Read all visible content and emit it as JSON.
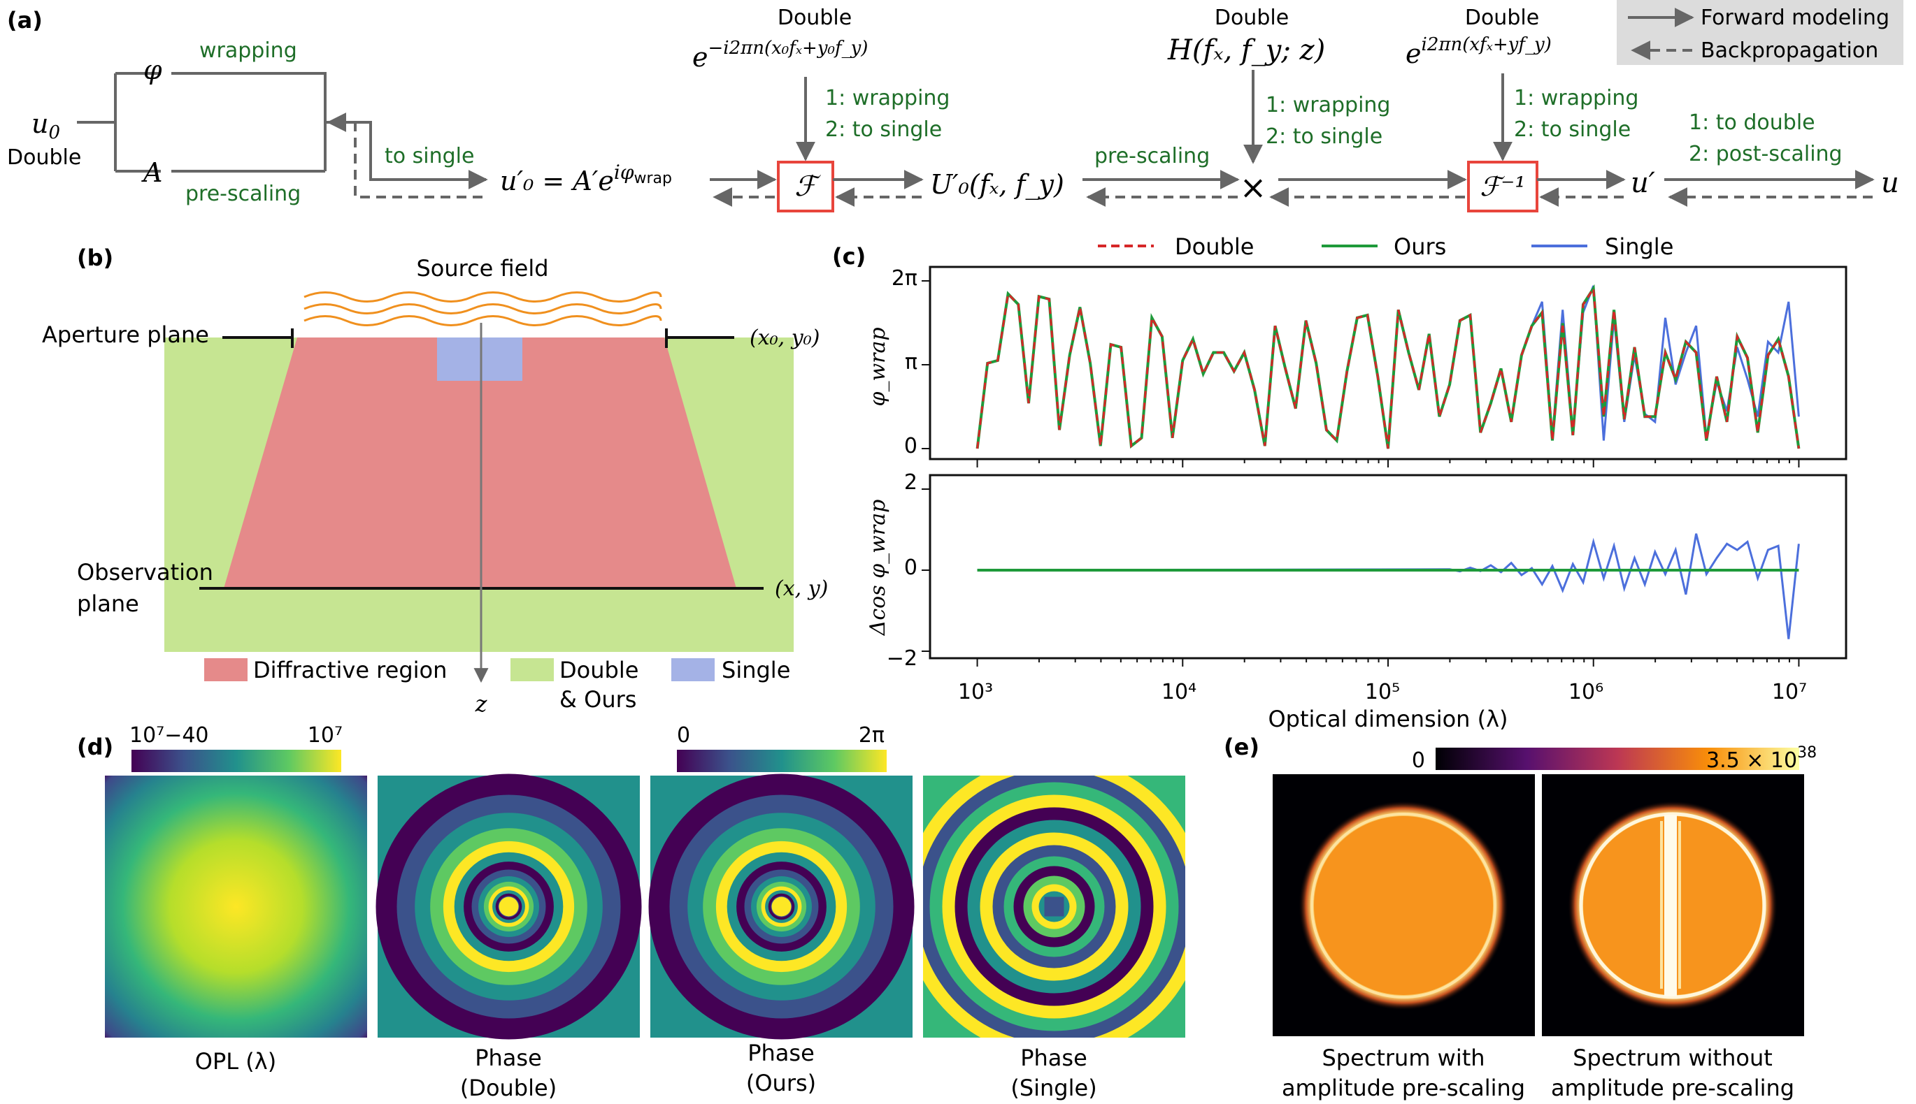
{
  "colors": {
    "arrow": "#666666",
    "green_text": "#1e6e28",
    "red_box": "#e8453c",
    "diffractive": "#e58a8a",
    "double_ours": "#c6e592",
    "single_region": "#a4b2e6",
    "source_wave": "#f0901e",
    "double_line": "#d62728",
    "ours_line": "#1e9a3a",
    "single_line": "#4c6fdc",
    "legend_bg": "#dcdcdc"
  },
  "panel_a": {
    "label": "(a)",
    "u0": "u",
    "u0_sub": "0",
    "u0_type": "Double",
    "phi": "φ",
    "amp": "A",
    "wrapping": "wrapping",
    "pre_scaling": "pre-scaling",
    "to_single": "to single",
    "u0p_eq": "u′₀ = A′e",
    "u0p_exp": "iφ",
    "u0p_exp_sub": "wrap",
    "fft_symbol": "ℱ",
    "ifft_symbol": "ℱ⁻¹",
    "double1": "Double",
    "kernel1": "e",
    "kernel1_exp": "−i2πn(x₀fₓ+y₀f_y)",
    "step1_a": "1: wrapping",
    "step1_b": "2: to single",
    "U0p": "U′₀(fₓ, f_y)",
    "pre_scaling2": "pre-scaling",
    "double2": "Double",
    "H": "H(fₓ, f_y; z)",
    "step2_a": "1: wrapping",
    "step2_b": "2: to single",
    "times": "×",
    "double3": "Double",
    "kernel3": "e",
    "kernel3_exp": "i2πn(xfₓ+yf_y)",
    "step3_a": "1: wrapping",
    "step3_b": "2: to single",
    "up": "u′",
    "u": "u",
    "step4_a": "1: to double",
    "step4_b": "2: post-scaling",
    "legend_forward": "Forward modeling",
    "legend_back": "Backpropagation"
  },
  "panel_b": {
    "label": "(b)",
    "source_field": "Source field",
    "aperture_plane": "Aperture plane",
    "aperture_coord": "(x₀, y₀)",
    "observation_plane_1": "Observation",
    "observation_plane_2": "plane",
    "observation_coord": "(x, y)",
    "z_label": "z",
    "legend_diffractive": "Diffractive region",
    "legend_double_1": "Double",
    "legend_double_2": "& Ours",
    "legend_single": "Single"
  },
  "chart_data": {
    "type": "line",
    "label": "(c)",
    "legend": [
      "Double",
      "Ours",
      "Single"
    ],
    "xlabel": "Optical dimension (λ)",
    "xscale": "log",
    "xlim": [
      1000,
      10000000
    ],
    "xticks": [
      "10³",
      "10⁴",
      "10⁵",
      "10⁶",
      "10⁷"
    ],
    "top": {
      "ylabel": "φ_wrap",
      "ylim": [
        0,
        6.2832
      ],
      "yticks": [
        "0",
        "π",
        "2π"
      ],
      "x_log10": [
        3.0,
        3.05,
        3.1,
        3.15,
        3.2,
        3.25,
        3.3,
        3.35,
        3.4,
        3.45,
        3.5,
        3.55,
        3.6,
        3.65,
        3.7,
        3.75,
        3.8,
        3.85,
        3.9,
        3.95,
        4.0,
        4.05,
        4.1,
        4.15,
        4.2,
        4.25,
        4.3,
        4.35,
        4.4,
        4.45,
        4.5,
        4.55,
        4.6,
        4.65,
        4.7,
        4.75,
        4.8,
        4.85,
        4.9,
        4.95,
        5.0,
        5.05,
        5.1,
        5.15,
        5.2,
        5.25,
        5.3,
        5.35,
        5.4,
        5.45,
        5.5,
        5.55,
        5.6,
        5.65,
        5.7,
        5.75,
        5.8,
        5.85,
        5.9,
        5.95,
        6.0,
        6.05,
        6.1,
        6.15,
        6.2,
        6.25,
        6.3,
        6.35,
        6.4,
        6.45,
        6.5,
        6.55,
        6.6,
        6.65,
        6.7,
        6.75,
        6.8,
        6.85,
        6.9,
        6.95,
        7.0
      ],
      "double": [
        0.0,
        3.2,
        3.3,
        5.8,
        5.4,
        1.7,
        5.7,
        5.6,
        0.7,
        3.5,
        5.3,
        3.2,
        0.1,
        3.9,
        3.8,
        0.1,
        0.4,
        4.9,
        4.2,
        0.4,
        3.3,
        4.1,
        2.8,
        3.6,
        3.6,
        2.9,
        3.6,
        2.2,
        0.1,
        4.6,
        3.0,
        1.5,
        4.8,
        3.2,
        0.7,
        0.3,
        2.9,
        4.9,
        5.0,
        2.7,
        0.0,
        5.2,
        3.6,
        2.2,
        4.3,
        1.2,
        2.4,
        4.8,
        5.0,
        0.6,
        1.7,
        3.0,
        1.0,
        3.5,
        4.6,
        5.1,
        0.3,
        4.7,
        0.5,
        5.4,
        6.0,
        1.2,
        5.2,
        1.1,
        3.8,
        1.2,
        1.2,
        3.6,
        2.6,
        4.0,
        3.6,
        0.3,
        2.7,
        1.0,
        4.2,
        3.4,
        0.6,
        3.5,
        4.1,
        2.7,
        0.0
      ],
      "single": [
        0.0,
        3.2,
        3.3,
        5.8,
        5.4,
        1.7,
        5.7,
        5.6,
        0.7,
        3.5,
        5.3,
        3.2,
        0.1,
        3.9,
        3.8,
        0.1,
        0.4,
        4.9,
        4.2,
        0.4,
        3.3,
        4.1,
        2.8,
        3.6,
        3.6,
        2.9,
        3.6,
        2.2,
        0.1,
        4.6,
        3.0,
        1.5,
        4.8,
        3.2,
        0.7,
        0.3,
        2.9,
        4.9,
        5.0,
        2.7,
        0.0,
        5.2,
        3.6,
        2.2,
        4.3,
        1.2,
        2.4,
        4.8,
        5.0,
        0.6,
        1.7,
        3.0,
        1.0,
        3.5,
        4.6,
        5.5,
        0.4,
        5.2,
        0.6,
        5.1,
        6.1,
        0.3,
        4.9,
        1.0,
        3.5,
        1.3,
        1.0,
        4.9,
        2.4,
        3.6,
        4.6,
        0.4,
        2.5,
        1.4,
        3.8,
        2.6,
        1.2,
        4.0,
        3.6,
        5.5,
        1.2
      ]
    },
    "bottom": {
      "ylabel": "Δcos φ_wrap",
      "ylim": [
        -2,
        2
      ],
      "yticks": [
        "−2",
        "0",
        "2"
      ],
      "ours": 0,
      "x_log10": [
        5.3,
        5.35,
        5.4,
        5.45,
        5.5,
        5.55,
        5.6,
        5.65,
        5.7,
        5.75,
        5.8,
        5.85,
        5.9,
        5.95,
        6.0,
        6.05,
        6.1,
        6.15,
        6.2,
        6.25,
        6.3,
        6.35,
        6.4,
        6.45,
        6.5,
        6.55,
        6.6,
        6.65,
        6.7,
        6.75,
        6.8,
        6.85,
        6.9,
        6.95,
        7.0
      ],
      "single": [
        0.02,
        -0.03,
        0.06,
        -0.02,
        0.12,
        -0.05,
        0.18,
        -0.12,
        0.05,
        -0.35,
        0.1,
        -0.5,
        0.15,
        -0.3,
        0.7,
        -0.2,
        0.6,
        -0.45,
        0.3,
        -0.35,
        0.45,
        -0.1,
        0.5,
        -0.6,
        0.9,
        -0.1,
        0.3,
        0.65,
        0.5,
        0.7,
        -0.2,
        0.5,
        0.6,
        -1.7,
        0.65
      ]
    }
  },
  "panel_d": {
    "label": "(d)",
    "cbar1_min": "10⁷−40",
    "cbar1_max": "10⁷",
    "cbar2_min": "0",
    "cbar2_max": "2π",
    "cap1": "OPL (λ)",
    "cap2_1": "Phase",
    "cap2_2": "(Double)",
    "cap3_1": "Phase",
    "cap3_2": "(Ours)",
    "cap4_1": "Phase",
    "cap4_2": "(Single)"
  },
  "panel_e": {
    "label": "(e)",
    "cbar_min": "0",
    "cbar_max": "3.5 × 10",
    "cbar_max_exp": "38",
    "cap1_1": "Spectrum with",
    "cap1_2": "amplitude pre-scaling",
    "cap2_1": "Spectrum without",
    "cap2_2": "amplitude pre-scaling"
  }
}
